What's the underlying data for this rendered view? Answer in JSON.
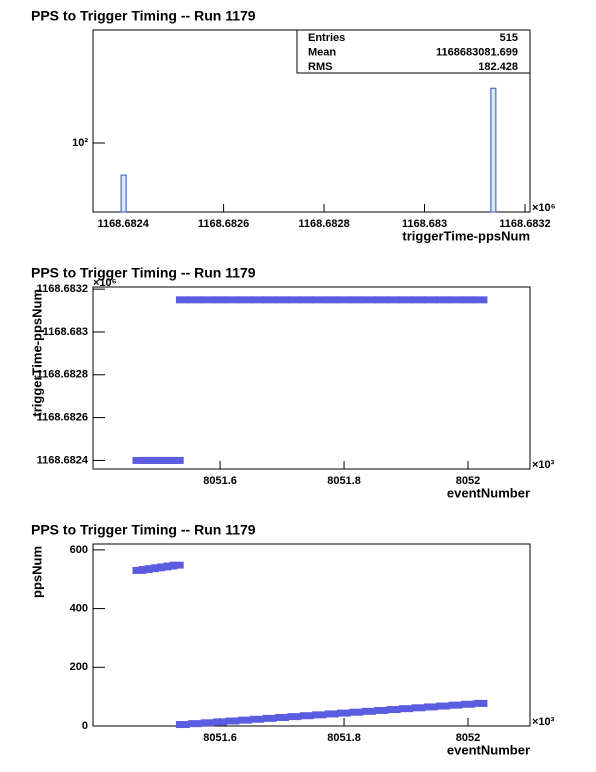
{
  "chart_data": [
    {
      "type": "histogram",
      "title": "PPS to Trigger Timing -- Run 1179",
      "x_label": "triggerTime-ppsNum",
      "x_multiplier": "×10⁶",
      "bins": [
        1168.682396,
        1168.682406,
        1168.683132,
        1168.683142
      ],
      "values": [
        40,
        0,
        475
      ],
      "color": "#4a6fc9",
      "xlim": [
        1168.68234,
        1168.68321
      ],
      "xticks": [
        1168.6824,
        1168.6826,
        1168.6828,
        1168.683,
        1168.6832
      ],
      "ylim": [
        14,
        2500
      ],
      "yscale": "log",
      "yticks": [
        {
          "value": 100,
          "label": "10²"
        }
      ],
      "stats": {
        "labels": [
          "Entries",
          "Mean",
          "RMS"
        ],
        "values": [
          515,
          1168683081.699,
          182.428
        ]
      }
    },
    {
      "type": "scatter",
      "title": "PPS to Trigger Timing -- Run 1179",
      "x_label": "eventNumber",
      "y_label": "triggerTime-ppsNum",
      "x_multiplier": "×10³",
      "y_multiplier": "×10⁶",
      "color": "#5c5ce0",
      "x": [
        8051.47,
        8051.48,
        8051.49,
        8051.5,
        8051.51,
        8051.52,
        8051.53,
        8051.54,
        8051.56,
        8051.58,
        8051.6,
        8051.62,
        8051.64,
        8051.66,
        8051.68,
        8051.7,
        8051.72,
        8051.74,
        8051.76,
        8051.78,
        8051.8,
        8051.82,
        8051.84,
        8051.86,
        8051.88,
        8051.9,
        8051.92,
        8051.94,
        8051.96,
        8051.98,
        8052.0,
        8052.02
      ],
      "values": [
        1168.6824,
        1168.6824,
        1168.6824,
        1168.6824,
        1168.6824,
        1168.6824,
        1168.6824,
        1168.68315,
        1168.68315,
        1168.68315,
        1168.68315,
        1168.68315,
        1168.68315,
        1168.68315,
        1168.68315,
        1168.68315,
        1168.68315,
        1168.68315,
        1168.68315,
        1168.68315,
        1168.68315,
        1168.68315,
        1168.68315,
        1168.68315,
        1168.68315,
        1168.68315,
        1168.68315,
        1168.68315,
        1168.68315,
        1168.68315,
        1168.68315,
        1168.68315
      ],
      "xlim": [
        8051.395,
        8052.1
      ],
      "xticks": [
        8051.6,
        8051.8,
        8052
      ],
      "ylim": [
        1168.68236,
        1168.68321
      ],
      "yticks": [
        1168.6824,
        1168.6826,
        1168.6828,
        1168.683,
        1168.6832
      ]
    },
    {
      "type": "scatter",
      "title": "PPS to Trigger Timing -- Run 1179",
      "x_label": "eventNumber",
      "y_label": "ppsNum",
      "x_multiplier": "×10³",
      "color": "#5c5ce0",
      "x": [
        8051.47,
        8051.48,
        8051.49,
        8051.5,
        8051.51,
        8051.52,
        8051.53,
        8051.54,
        8051.56,
        8051.58,
        8051.6,
        8051.62,
        8051.64,
        8051.66,
        8051.68,
        8051.7,
        8051.72,
        8051.74,
        8051.76,
        8051.78,
        8051.8,
        8051.82,
        8051.84,
        8051.86,
        8051.88,
        8051.9,
        8051.92,
        8051.94,
        8051.96,
        8051.98,
        8052.0,
        8052.02
      ],
      "values": [
        530,
        533,
        536,
        539,
        542,
        545,
        548,
        5,
        8,
        11,
        14,
        17,
        20,
        23,
        26,
        29,
        32,
        35,
        38,
        41,
        44,
        47,
        50,
        53,
        56,
        59,
        62,
        65,
        68,
        71,
        74,
        77
      ],
      "xlim": [
        8051.395,
        8052.1
      ],
      "xticks": [
        8051.6,
        8051.8,
        8052
      ],
      "ylim": [
        0,
        620
      ],
      "yticks": [
        0,
        200,
        400,
        600
      ]
    }
  ]
}
